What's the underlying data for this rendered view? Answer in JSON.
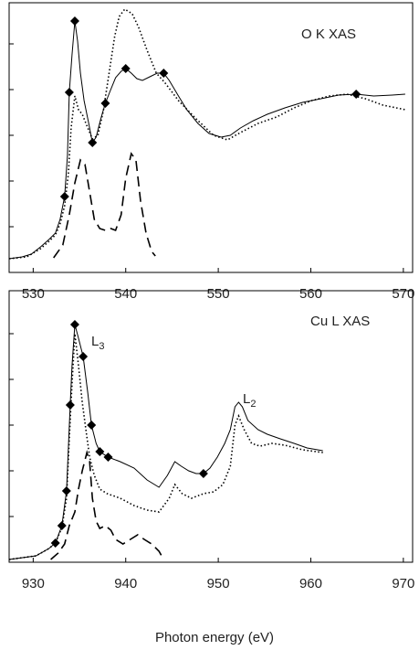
{
  "chart_data": [
    {
      "type": "line",
      "annotations": [
        "O K XAS"
      ],
      "xlim": [
        527.4,
        571
      ],
      "xticks": [
        530,
        540,
        550,
        560,
        570
      ],
      "ylim": [
        0,
        295
      ],
      "yticks": [
        50,
        100,
        150,
        200,
        250
      ],
      "series": [
        {
          "style": "solid",
          "color": "#000000",
          "x": [
            527.4,
            528.8,
            529.8,
            530.8,
            531.7,
            532.4,
            532.9,
            533.4,
            533.7,
            533.9,
            534.2,
            534.5,
            534.8,
            535.1,
            535.5,
            536.0,
            536.4,
            536.8,
            537.3,
            537.8,
            538.3,
            538.9,
            539.5,
            540.0,
            540.6,
            541.2,
            541.8,
            542.6,
            543.4,
            544.1,
            544.7,
            545.7,
            546.6,
            547.8,
            549.0,
            550.3,
            551.3,
            552.4,
            553.8,
            555.3,
            557.2,
            559.1,
            561.1,
            563.0,
            564.9,
            566.8,
            568.8,
            570.2
          ],
          "values": [
            15,
            17,
            20,
            28,
            36,
            43,
            58,
            83,
            128,
            197,
            238,
            275,
            253,
            218,
            188,
            163,
            142,
            148,
            168,
            185,
            198,
            213,
            220,
            223,
            218,
            212,
            210,
            214,
            218,
            218,
            210,
            193,
            178,
            163,
            152,
            148,
            150,
            158,
            166,
            173,
            180,
            186,
            190,
            194,
            195,
            193,
            194,
            195
          ]
        },
        {
          "style": "dotted",
          "color": "#000000",
          "x": [
            527.4,
            529.3,
            530.8,
            531.7,
            532.4,
            532.9,
            533.4,
            533.8,
            534.1,
            534.5,
            534.9,
            535.3,
            535.9,
            536.4,
            537.0,
            537.6,
            538.2,
            538.8,
            539.3,
            539.9,
            540.7,
            541.4,
            542.3,
            543.3,
            544.2,
            545.7,
            547.6,
            549.5,
            551.0,
            552.4,
            554.3,
            556.3,
            558.2,
            560.1,
            562.0,
            563.9,
            565.9,
            567.8,
            570.2
          ],
          "values": [
            15,
            17,
            26,
            34,
            41,
            53,
            73,
            108,
            158,
            193,
            178,
            173,
            158,
            146,
            150,
            178,
            218,
            258,
            280,
            288,
            283,
            268,
            243,
            218,
            208,
            188,
            168,
            150,
            145,
            153,
            163,
            170,
            180,
            188,
            193,
            195,
            190,
            183,
            178
          ]
        },
        {
          "style": "dashed",
          "color": "#000000",
          "x": [
            532.2,
            533.2,
            533.9,
            534.5,
            535.1,
            535.6,
            536.1,
            536.6,
            537.2,
            537.8,
            538.4,
            538.9,
            539.5,
            540.0,
            540.6,
            541.1,
            541.6,
            542.2,
            542.8,
            543.2
          ],
          "values": [
            16,
            30,
            63,
            98,
            123,
            118,
            88,
            58,
            48,
            46,
            48,
            46,
            63,
            103,
            130,
            123,
            78,
            43,
            23,
            18
          ]
        },
        {
          "style": "markers",
          "marker": "diamond",
          "color": "#000000",
          "x": [
            533.4,
            533.9,
            534.5,
            536.4,
            537.8,
            540.0,
            544.1,
            564.9
          ],
          "values": [
            83,
            197,
            275,
            142,
            185,
            223,
            218,
            195
          ]
        }
      ]
    },
    {
      "type": "line",
      "annotations": [
        "Cu L XAS",
        {
          "text": "L",
          "sub": "3"
        },
        {
          "text": "L",
          "sub": "2"
        }
      ],
      "x_label": "Photon energy (eV)",
      "xlim": [
        927.4,
        971
      ],
      "xticks": [
        930,
        940,
        950,
        960,
        970
      ],
      "ylim": [
        0,
        297
      ],
      "yticks": [
        50,
        100,
        150,
        200,
        250
      ],
      "series": [
        {
          "style": "solid",
          "color": "#000000",
          "x": [
            927.4,
            930.3,
            931.7,
            932.4,
            933.1,
            933.6,
            933.8,
            934.0,
            934.2,
            934.5,
            934.9,
            935.4,
            935.9,
            936.3,
            936.8,
            937.2,
            938.1,
            939.4,
            940.9,
            942.3,
            943.6,
            944.5,
            945.3,
            946.0,
            946.8,
            947.6,
            948.4,
            949.1,
            949.9,
            950.7,
            951.3,
            951.8,
            952.2,
            952.6,
            953.2,
            954.3,
            955.3,
            956.7,
            958.2,
            959.6,
            961.3
          ],
          "values": [
            3,
            7,
            15,
            21,
            40,
            78,
            125,
            172,
            215,
            260,
            245,
            225,
            185,
            150,
            130,
            121,
            115,
            110,
            103,
            90,
            82,
            95,
            110,
            105,
            100,
            97,
            97,
            103,
            115,
            130,
            145,
            170,
            175,
            170,
            155,
            145,
            140,
            135,
            130,
            125,
            122
          ]
        },
        {
          "style": "dotted",
          "color": "#000000",
          "x": [
            927.4,
            930.3,
            931.7,
            932.4,
            933.1,
            933.6,
            933.9,
            934.2,
            934.5,
            934.9,
            935.3,
            935.7,
            936.1,
            936.6,
            937.2,
            938.0,
            939.4,
            940.9,
            942.3,
            943.6,
            944.7,
            945.3,
            946.1,
            947.1,
            948.4,
            949.5,
            950.5,
            951.3,
            951.8,
            952.2,
            952.8,
            953.6,
            954.5,
            955.8,
            957.2,
            959.1,
            961.3
          ],
          "values": [
            3,
            7,
            15,
            21,
            38,
            70,
            135,
            195,
            250,
            215,
            175,
            145,
            115,
            95,
            80,
            75,
            70,
            62,
            57,
            55,
            70,
            85,
            75,
            70,
            75,
            77,
            85,
            105,
            150,
            160,
            145,
            130,
            127,
            130,
            128,
            123,
            120
          ]
        },
        {
          "style": "dashed",
          "color": "#000000",
          "x": [
            931.9,
            932.7,
            933.4,
            933.9,
            934.5,
            934.9,
            935.3,
            935.8,
            936.1,
            936.4,
            936.8,
            937.2,
            937.8,
            938.4,
            938.9,
            939.7,
            940.5,
            941.3,
            942.0,
            942.8,
            943.6,
            944.1
          ],
          "values": [
            3,
            10,
            20,
            40,
            55,
            80,
            100,
            120,
            110,
            70,
            45,
            37,
            40,
            35,
            25,
            20,
            25,
            30,
            25,
            20,
            12,
            3
          ]
        },
        {
          "style": "markers",
          "marker": "diamond",
          "color": "#000000",
          "x": [
            932.4,
            933.1,
            933.6,
            934.0,
            934.5,
            935.4,
            936.3,
            937.2,
            938.1,
            948.4
          ],
          "values": [
            21,
            40,
            78,
            172,
            260,
            225,
            150,
            121,
            115,
            97
          ]
        }
      ]
    }
  ]
}
